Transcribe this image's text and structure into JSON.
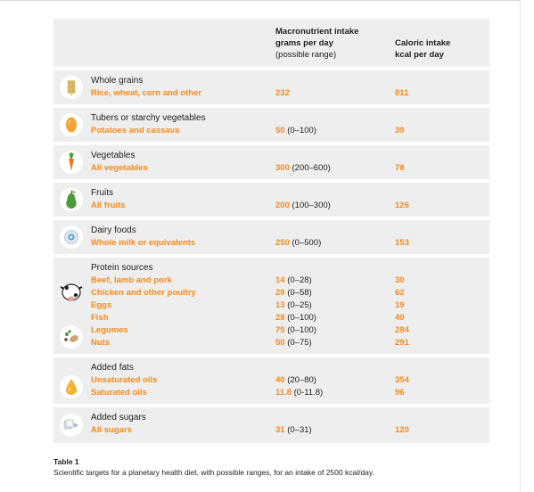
{
  "header": {
    "macro_title_1": "Macronutrient intake",
    "macro_title_2": "grams per day",
    "macro_sub": "(possible range)",
    "cal_title_1": "Caloric intake",
    "cal_title_2": "kcal per day"
  },
  "rows": [
    {
      "icon": "wheat-icon",
      "category": "Whole grains",
      "foods": [
        "Rice, wheat, corn and other"
      ],
      "macro_values": [
        "232"
      ],
      "macro_ranges": [
        ""
      ],
      "kcal": [
        "811"
      ]
    },
    {
      "icon": "potato-icon",
      "category": "Tubers or starchy vegetables",
      "foods": [
        "Potatoes and cassava"
      ],
      "macro_values": [
        "50"
      ],
      "macro_ranges": [
        "(0–100)"
      ],
      "kcal": [
        "39"
      ]
    },
    {
      "icon": "carrot-icon",
      "category": "Vegetables",
      "foods": [
        "All vegetables"
      ],
      "macro_values": [
        "300"
      ],
      "macro_ranges": [
        "(200–600)"
      ],
      "kcal": [
        "78"
      ]
    },
    {
      "icon": "pear-icon",
      "category": "Fruits",
      "foods": [
        "All fruits"
      ],
      "macro_values": [
        "200"
      ],
      "macro_ranges": [
        "(100–300)"
      ],
      "kcal": [
        "126"
      ]
    },
    {
      "icon": "milk-icon",
      "category": "Dairy foods",
      "foods": [
        "Whole milk or equivalents"
      ],
      "macro_values": [
        "250"
      ],
      "macro_ranges": [
        "(0–500)"
      ],
      "kcal": [
        "153"
      ]
    },
    {
      "icon": "cow-and-beans-icon",
      "category": "Protein sources",
      "foods": [
        "Beef, lamb and pork",
        "Chicken and other poultry",
        "Eggs",
        "Fish",
        "Legumes",
        "Nuts"
      ],
      "macro_values": [
        "14",
        "29",
        "13",
        "28",
        "75",
        "50"
      ],
      "macro_ranges": [
        "(0–28)",
        "(0–58)",
        "(0–25)",
        "(0–100)",
        "(0–100)",
        "(0–75)"
      ],
      "kcal": [
        "30",
        "62",
        "19",
        "40",
        "284",
        "291"
      ]
    },
    {
      "icon": "oil-drop-icon",
      "category": "Added fats",
      "foods": [
        "Unsaturated oils",
        "Saturated oils"
      ],
      "macro_values": [
        "40",
        "11.8"
      ],
      "macro_ranges": [
        "(20–80)",
        "(0-11.8)"
      ],
      "kcal": [
        "354",
        "96"
      ]
    },
    {
      "icon": "sugar-cube-icon",
      "category": "Added sugars",
      "foods": [
        "All sugars"
      ],
      "macro_values": [
        "31"
      ],
      "macro_ranges": [
        "(0–31)"
      ],
      "kcal": [
        "120"
      ]
    }
  ],
  "caption": {
    "title": "Table 1",
    "text": "Scientific targets for a planetary health diet, with possible ranges, for an intake of 2500 kcal/day."
  },
  "colors": {
    "accent": "#f28b1d",
    "band": "#eeeeee",
    "text": "#1e1e1e"
  }
}
